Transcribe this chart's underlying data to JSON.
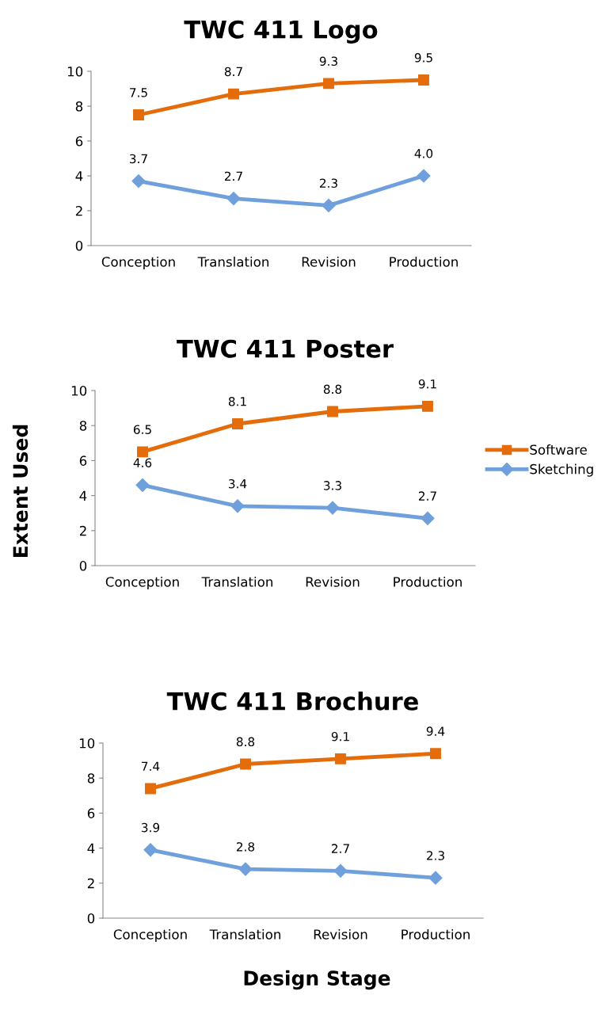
{
  "chart_data": [
    {
      "type": "line",
      "title": "TWC 411 Logo",
      "categories": [
        "Conception",
        "Translation",
        "Revision",
        "Production"
      ],
      "ylim": [
        0,
        10
      ],
      "yticks": [
        0,
        2,
        4,
        6,
        8,
        10
      ],
      "grid": false,
      "legend": false,
      "line_style": "solid",
      "series": [
        {
          "color": "#e46c0a",
          "marker": "square",
          "values": [
            7.5,
            8.7,
            9.3,
            9.5
          ],
          "value_labels": [
            "7.5",
            "8.7",
            "9.3",
            "9.5"
          ]
        },
        {
          "color": "#6fa0dc",
          "marker": "diamond",
          "values": [
            3.7,
            2.7,
            2.3,
            4.0
          ],
          "value_labels": [
            "3.7",
            "2.7",
            "2.3",
            "4.0"
          ]
        }
      ]
    },
    {
      "type": "line",
      "title": "TWC 411 Poster",
      "ylabel": "Extent Used",
      "categories": [
        "Conception",
        "Translation",
        "Revision",
        "Production"
      ],
      "ylim": [
        0,
        10
      ],
      "yticks": [
        0,
        2,
        4,
        6,
        8,
        10
      ],
      "grid": false,
      "legend": "right",
      "line_style": "solid",
      "series": [
        {
          "name": "Software",
          "color": "#e46c0a",
          "marker": "square",
          "values": [
            6.5,
            8.1,
            8.8,
            9.1
          ],
          "value_labels": [
            "6.5",
            "8.1",
            "8.8",
            "9.1"
          ]
        },
        {
          "name": "Sketching",
          "color": "#6fa0dc",
          "marker": "diamond",
          "values": [
            4.6,
            3.4,
            3.3,
            2.7
          ],
          "value_labels": [
            "4.6",
            "3.4",
            "3.3",
            "2.7"
          ]
        }
      ]
    },
    {
      "type": "line",
      "title": "TWC 411 Brochure",
      "xlabel": "Design Stage",
      "categories": [
        "Conception",
        "Translation",
        "Revision",
        "Production"
      ],
      "ylim": [
        0,
        10
      ],
      "yticks": [
        0,
        2,
        4,
        6,
        8,
        10
      ],
      "grid": false,
      "legend": false,
      "line_style": "solid",
      "series": [
        {
          "color": "#e46c0a",
          "marker": "square",
          "values": [
            7.4,
            8.8,
            9.1,
            9.4
          ],
          "value_labels": [
            "7.4",
            "8.8",
            "9.1",
            "9.4"
          ]
        },
        {
          "color": "#6fa0dc",
          "marker": "diamond",
          "values": [
            3.9,
            2.8,
            2.7,
            2.3
          ],
          "value_labels": [
            "3.9",
            "2.8",
            "2.7",
            "2.3"
          ]
        }
      ]
    }
  ]
}
